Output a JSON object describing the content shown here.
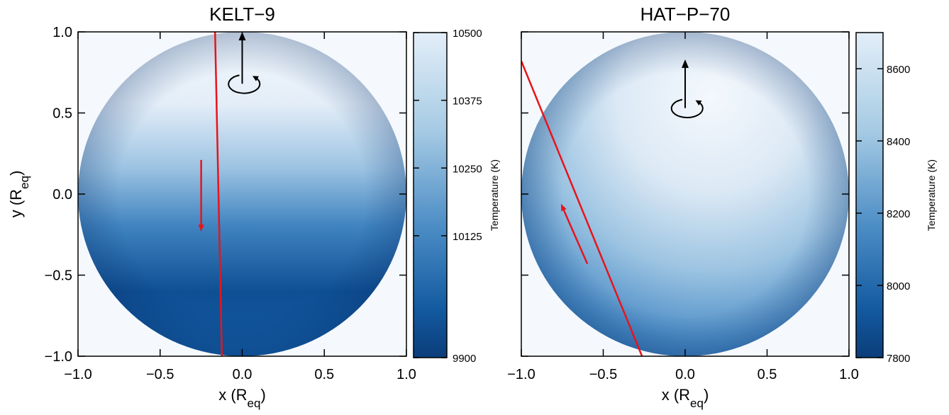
{
  "chart_data": [
    {
      "type": "heatmap",
      "title": "KELT−9",
      "xlabel": [
        "x (R",
        "eq",
        ")"
      ],
      "ylabel": [
        "y (R",
        "eq",
        ")"
      ],
      "xlim": [
        -1,
        1
      ],
      "ylim": [
        -1,
        1
      ],
      "xticks": [
        {
          "value": -1,
          "label": "−1.0"
        },
        {
          "value": -0.5,
          "label": "−0.5"
        },
        {
          "value": 0,
          "label": "0.0"
        },
        0.5,
        {
          "value": 1,
          "label": "1.0"
        }
      ],
      "yticks": [
        {
          "value": -1,
          "label": "−1.0"
        },
        {
          "value": -0.5,
          "label": "−0.5"
        },
        {
          "value": 0,
          "label": "0.0"
        },
        0.5,
        {
          "value": 1,
          "label": "1.0"
        }
      ],
      "colorbar": {
        "label": "Temperature (K)",
        "lim": [
          9900,
          10500
        ],
        "ticks": [
          9900,
          10125,
          10250,
          10375,
          10500
        ]
      }
    },
    {
      "type": "heatmap",
      "title": "HAT−P−70",
      "xlabel": [
        "x (R",
        "eq",
        ")"
      ],
      "xlim": [
        -1,
        1
      ],
      "ylim": [
        -1,
        1
      ],
      "xticks": [
        {
          "value": -1,
          "label": "−1.0"
        },
        {
          "value": -0.5,
          "label": "−0.5"
        },
        {
          "value": 0,
          "label": "0.0"
        },
        0.5,
        {
          "value": 1,
          "label": "1.0"
        }
      ],
      "colorbar": {
        "label": "Temperature (K)",
        "lim": [
          7800,
          8700
        ],
        "ticks": [
          7800,
          8000,
          8200,
          8400,
          8600
        ]
      }
    }
  ]
}
